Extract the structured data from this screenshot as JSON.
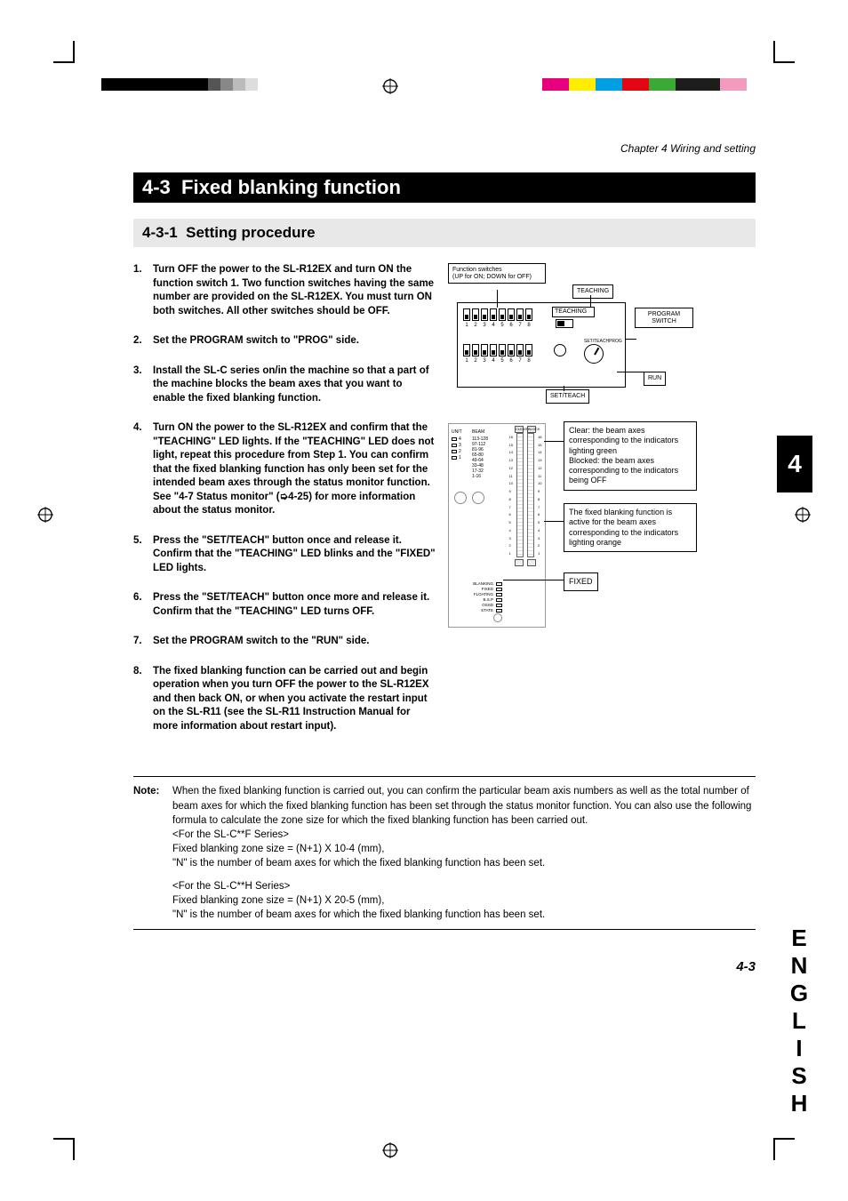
{
  "chapter_header": "Chapter 4  Wiring and setting",
  "section": {
    "number": "4-3",
    "title": "Fixed blanking function"
  },
  "subsection": {
    "number": "4-3-1",
    "title": "Setting procedure"
  },
  "steps": [
    "Turn OFF the power to the SL-R12EX and turn ON the function switch 1. Two function switches having the same number are provided on the SL-R12EX. You must turn ON both switches. All other switches should be OFF.",
    "Set the PROGRAM switch to \"PROG\" side.",
    "Install the SL-C series on/in the machine so that a part of the machine blocks the beam axes that you want to enable the fixed blanking function.",
    "Turn ON the power to the SL-R12EX and confirm that the \"TEACHING\" LED lights. If the \"TEACHING\" LED does not light, repeat this procedure from Step 1. You can confirm that the fixed blanking function has only been set for the intended beam axes through the status monitor function. See \"4-7 Status monitor\" (➭4-25) for more information about the status monitor.",
    "Press the \"SET/TEACH\" button once and release it. Confirm that the \"TEACHING\" LED blinks and the \"FIXED\" LED lights.",
    "Press the \"SET/TEACH\" button once more and release it. Confirm that the \"TEACHING\" LED turns OFF.",
    "Set the PROGRAM switch to the \"RUN\" side.",
    "The fixed blanking function can be carried out and begin operation when you turn OFF the power to the SL-R12EX and then back ON, or when you activate the restart input on the SL-R11 (see the SL-R11 Instruction Manual for more information about restart input)."
  ],
  "note": {
    "label": "Note:",
    "body": "When the fixed blanking function is carried out, you can confirm the particular beam axis numbers as well as the total number of beam axes for which the fixed blanking function has been set through the status monitor function. You can also use the following formula to calculate the zone size for which the fixed blanking function has been carried out.",
    "f_series_hdr": "<For the SL-C**F Series>",
    "f_series_formula": "Fixed blanking zone size = (N+1) X 10-4 (mm),",
    "f_series_note": "\"N\" is the number of beam axes for which the fixed blanking function has been set.",
    "h_series_hdr": "<For the SL-C**H Series>",
    "h_series_formula": "Fixed blanking zone size = (N+1) X 20-5 (mm),",
    "h_series_note": "\"N\" is the number of beam axes for which the fixed blanking function has been set."
  },
  "page_number": "4-3",
  "side_tab": "4",
  "side_lang": "ENGLISH",
  "diagram": {
    "function_switches_label": "Function switches\n(UP for ON; DOWN for OFF)",
    "dip_numbers": [
      "1",
      "2",
      "3",
      "4",
      "5",
      "6",
      "7",
      "8"
    ],
    "teaching": "TEACHING",
    "teaching_led": "TEACHING",
    "program_switch": "PROGRAM SWITCH",
    "set_teach": "SET/TEACH",
    "prog": "PROG",
    "run": "RUN",
    "unit_label": "UNIT",
    "unit_rows": [
      "4",
      "3",
      "2",
      "1"
    ],
    "beam_label": "BEAM",
    "beam_rows": [
      "113-128",
      "97-112",
      "81-96",
      "65-80",
      "49-64",
      "33-48",
      "17-32",
      "1-16"
    ],
    "optics_caps": [
      "CLEAR",
      "BLOCK"
    ],
    "optics_vals_a": [
      "16",
      "15",
      "14",
      "13",
      "12",
      "11",
      "10",
      "9",
      "8",
      "7",
      "6",
      "5",
      "4",
      "3",
      "2",
      "1"
    ],
    "bottom_leds": [
      "BLANKING",
      "FIXED",
      "FLOATING",
      "B.S.P",
      "OSSD",
      "STATE"
    ],
    "callout_clear": "Clear: the beam axes corresponding to the indicators lighting green\nBlocked: the beam axes corresponding to the indicators being OFF",
    "callout_active": "The fixed blanking function is active for the beam axes corresponding to the indicators lighting orange",
    "callout_fixed": "FIXED"
  },
  "print_marks": {
    "colorbar_black": "#000000",
    "colorbar": [
      "#e6007e",
      "#ffed00",
      "#009fe3",
      "#e30613",
      "#3aaa35",
      "#1d1d1b",
      "#f39abf"
    ],
    "crop_color": "#000000"
  }
}
